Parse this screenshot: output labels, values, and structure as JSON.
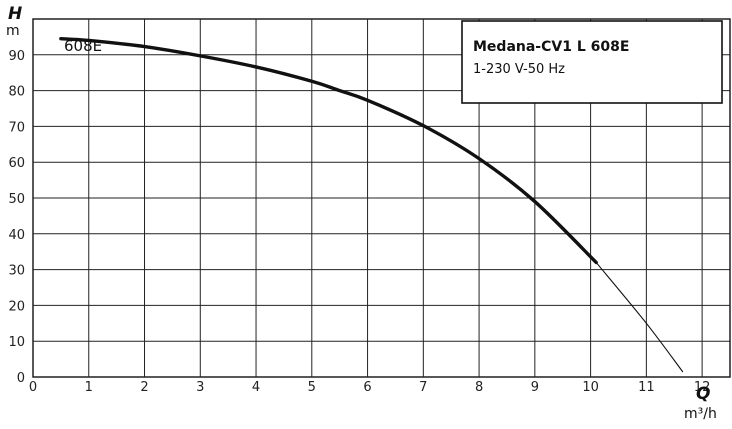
{
  "chart_data": {
    "type": "line",
    "title": "",
    "xlim": [
      0,
      12.5
    ],
    "ylim": [
      0,
      100
    ],
    "x_ticks": [
      "0",
      "1",
      "2",
      "3",
      "4",
      "5",
      "6",
      "7",
      "8",
      "9",
      "10",
      "11",
      "12"
    ],
    "y_ticks": [
      "0",
      "10",
      "20",
      "30",
      "40",
      "50",
      "60",
      "70",
      "80",
      "90"
    ],
    "y_axis": {
      "symbol": "H",
      "unit": "m"
    },
    "x_axis": {
      "symbol": "Q",
      "unit": "m³/h"
    },
    "grid": true,
    "legend": {
      "placement": "top-right",
      "title": "Medana-CV1 L 608E",
      "subtitle": "1-230 V-50 Hz"
    },
    "series": [
      {
        "name": "608E",
        "color": "#111111",
        "x": [
          0.5,
          1.0,
          2.0,
          3.0,
          4.0,
          5.0,
          5.5,
          6.0,
          7.0,
          8.0,
          9.0,
          10.1
        ],
        "y": [
          94.5,
          94,
          92.3,
          89.7,
          86.6,
          82.6,
          80.0,
          77.3,
          70.2,
          61.0,
          49.0,
          32.0
        ]
      },
      {
        "name": "",
        "color": "#111111",
        "x": [
          10.1,
          11.0,
          11.65
        ],
        "y": [
          32.0,
          15.0,
          1.5
        ]
      }
    ]
  }
}
